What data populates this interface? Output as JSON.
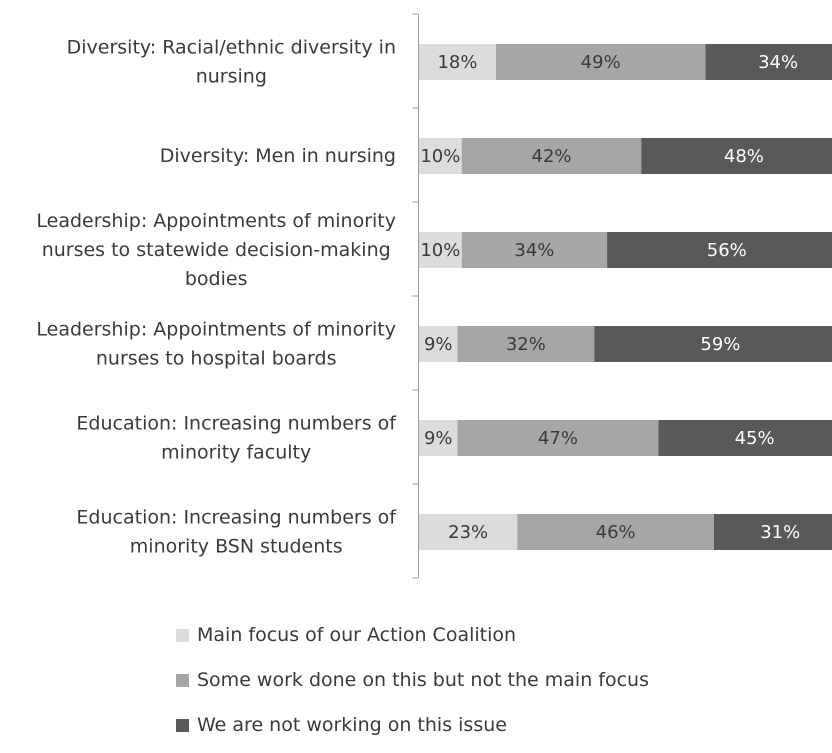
{
  "chart_data": {
    "type": "bar",
    "orientation": "horizontal",
    "stacked": true,
    "percent": true,
    "title": "",
    "xlabel": "",
    "ylabel": "",
    "xlim": [
      0,
      100
    ],
    "categories": [
      [
        "Diversity: Racial/ethnic diversity in",
        "nursing"
      ],
      [
        "Diversity: Men in nursing"
      ],
      [
        "Leadership: Appointments of minority",
        "nurses to statewide decision-making",
        "bodies"
      ],
      [
        "Leadership: Appointments of minority",
        "nurses to hospital boards"
      ],
      [
        "Education: Increasing numbers of",
        "minority faculty"
      ],
      [
        "Education: Increasing numbers of",
        "minority BSN students"
      ]
    ],
    "series": [
      {
        "name": "Main focus of our Action Coalition",
        "color": "#dcdcdc",
        "label_color": "#3a3a3a",
        "values": [
          18,
          10,
          10,
          9,
          9,
          23
        ],
        "labels": [
          "18%",
          "10%",
          "10%",
          "9%",
          "9%",
          "23%"
        ]
      },
      {
        "name": "Some work done on this but not the main focus",
        "color": "#a6a6a6",
        "label_color": "#3a3a3a",
        "values": [
          49,
          42,
          34,
          32,
          47,
          46
        ],
        "labels": [
          "49%",
          "42%",
          "34%",
          "32%",
          "47%",
          "46%"
        ]
      },
      {
        "name": "We are not working on this issue",
        "color": "#595959",
        "label_color": "#ffffff",
        "values": [
          34,
          48,
          56,
          59,
          45,
          31
        ],
        "labels": [
          "34%",
          "48%",
          "56%",
          "59%",
          "45%",
          "31%"
        ]
      }
    ],
    "legend_position": "bottom",
    "grid": false
  }
}
